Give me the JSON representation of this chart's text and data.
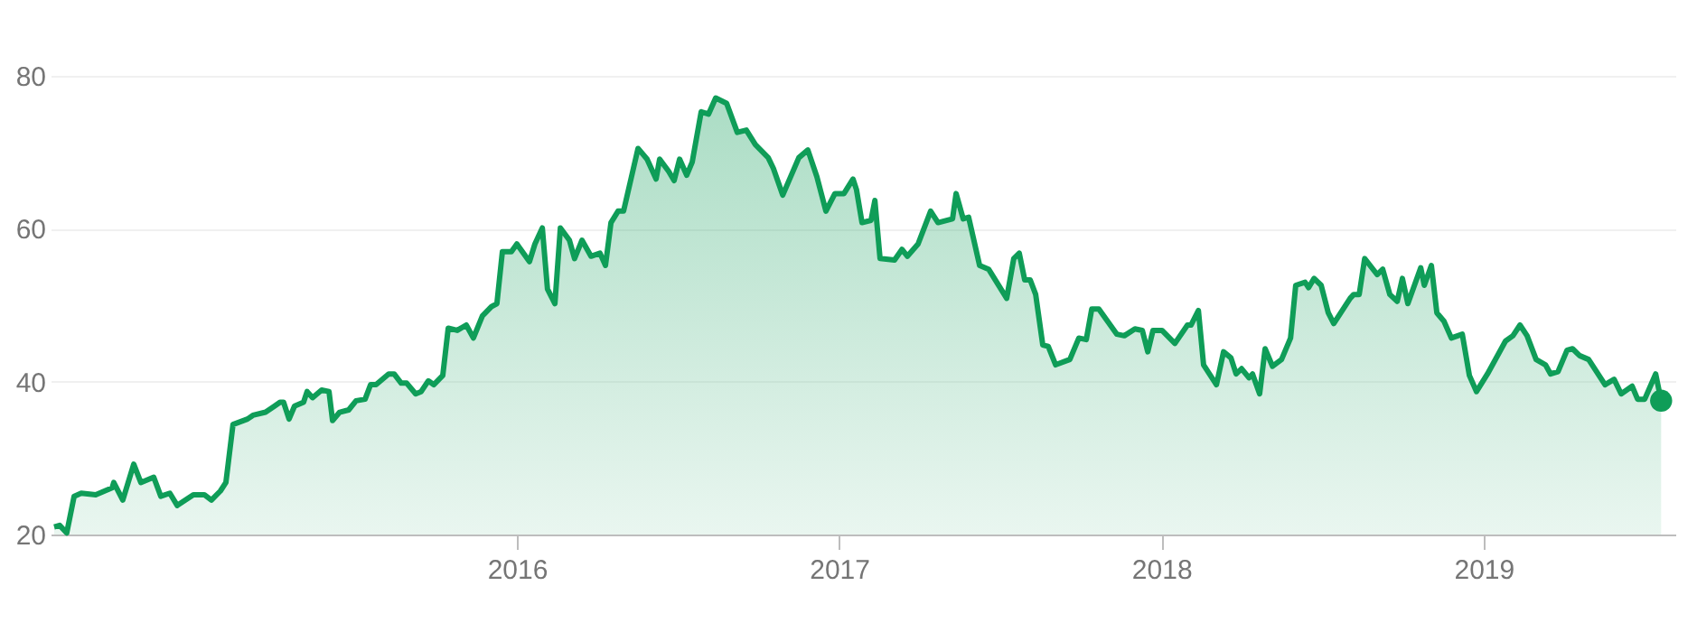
{
  "chart_data": {
    "type": "area",
    "xlim": [
      2014.553,
      2019.595
    ],
    "xticks": [
      2016,
      2017,
      2018,
      2019
    ],
    "ylim": [
      20,
      80
    ],
    "yticks": [
      20,
      40,
      60,
      80
    ],
    "grid": "y",
    "series": [
      {
        "color": "#0f9d58",
        "x": [
          2014.564,
          2014.581,
          2014.603,
          2014.626,
          2014.648,
          2014.693,
          2014.744,
          2014.749,
          2014.777,
          2014.811,
          2014.833,
          2014.873,
          2014.895,
          2014.923,
          2014.946,
          2014.996,
          2015.03,
          2015.052,
          2015.08,
          2015.097,
          2015.119,
          2015.164,
          2015.181,
          2015.22,
          2015.248,
          2015.265,
          2015.276,
          2015.293,
          2015.31,
          2015.338,
          2015.349,
          2015.366,
          2015.394,
          2015.417,
          2015.428,
          2015.45,
          2015.478,
          2015.501,
          2015.529,
          2015.546,
          2015.563,
          2015.602,
          2015.619,
          2015.641,
          2015.658,
          2015.686,
          2015.703,
          2015.725,
          2015.742,
          2015.77,
          2015.787,
          2015.815,
          2015.843,
          2015.865,
          2015.893,
          2015.921,
          2015.938,
          2015.955,
          2015.983,
          2016.0,
          2016.039,
          2016.056,
          2016.079,
          2016.095,
          2016.118,
          2016.135,
          2016.163,
          2016.179,
          2016.202,
          2016.23,
          2016.258,
          2016.275,
          2016.292,
          2016.314,
          2016.331,
          2016.376,
          2016.404,
          2016.432,
          2016.443,
          2016.471,
          2016.488,
          2016.505,
          2016.527,
          2016.544,
          2016.572,
          2016.595,
          2016.617,
          2016.651,
          2016.684,
          2016.712,
          2016.74,
          2016.78,
          2016.796,
          2016.825,
          2016.875,
          2016.903,
          2016.931,
          2016.959,
          2016.987,
          2017.015,
          2017.043,
          2017.054,
          2017.071,
          2017.099,
          2017.111,
          2017.127,
          2017.172,
          2017.195,
          2017.212,
          2017.245,
          2017.284,
          2017.307,
          2017.352,
          2017.363,
          2017.385,
          2017.402,
          2017.436,
          2017.464,
          2017.52,
          2017.542,
          2017.559,
          2017.576,
          2017.593,
          2017.61,
          2017.632,
          2017.649,
          2017.672,
          2017.716,
          2017.744,
          2017.767,
          2017.784,
          2017.806,
          2017.862,
          2017.885,
          2017.918,
          2017.941,
          2017.958,
          2017.974,
          2018.002,
          2018.042,
          2018.081,
          2018.092,
          2018.115,
          2018.131,
          2018.171,
          2018.193,
          2018.216,
          2018.232,
          2018.249,
          2018.272,
          2018.283,
          2018.305,
          2018.322,
          2018.345,
          2018.373,
          2018.401,
          2018.417,
          2018.446,
          2018.457,
          2018.474,
          2018.496,
          2018.518,
          2018.535,
          2018.586,
          2018.597,
          2018.614,
          2018.631,
          2018.67,
          2018.687,
          2018.709,
          2018.732,
          2018.748,
          2018.765,
          2018.805,
          2018.816,
          2018.838,
          2018.855,
          2018.877,
          2018.9,
          2018.934,
          2018.956,
          2018.978,
          2019.012,
          2019.068,
          2019.091,
          2019.113,
          2019.135,
          2019.163,
          2019.192,
          2019.208,
          2019.231,
          2019.259,
          2019.276,
          2019.298,
          2019.326,
          2019.377,
          2019.405,
          2019.427,
          2019.461,
          2019.478,
          2019.5,
          2019.534,
          2019.551
        ],
        "values": [
          21,
          21.2,
          20.2,
          25,
          25.4,
          25.2,
          26.1,
          26.8,
          24.5,
          29.2,
          26.8,
          27.5,
          25,
          25.4,
          23.8,
          25.2,
          25.2,
          24.5,
          25.7,
          26.8,
          34.4,
          35.1,
          35.6,
          36,
          36.8,
          37.3,
          37.3,
          35.1,
          36.8,
          37.3,
          38.7,
          37.9,
          38.9,
          38.7,
          34.9,
          36,
          36.3,
          37.5,
          37.7,
          39.6,
          39.6,
          41,
          41,
          39.8,
          39.8,
          38.4,
          38.7,
          40.1,
          39.6,
          40.8,
          47,
          46.7,
          47.4,
          45.7,
          48.6,
          49.8,
          50.2,
          57,
          57,
          58,
          55.7,
          58,
          60.1,
          52.1,
          50.2,
          60.1,
          58.5,
          56.1,
          58.5,
          56.4,
          56.8,
          55.2,
          60.8,
          62.3,
          62.3,
          70.5,
          69.1,
          66.5,
          69.1,
          67.5,
          66.3,
          69.1,
          67,
          68.7,
          75.3,
          75,
          77.1,
          76.4,
          72.6,
          72.9,
          71,
          69.3,
          67.9,
          64.4,
          69.3,
          70.3,
          66.8,
          62.3,
          64.6,
          64.6,
          66.5,
          65.1,
          60.8,
          61.1,
          63.7,
          56.1,
          55.9,
          57.3,
          56.4,
          58,
          62.3,
          60.8,
          61.3,
          64.6,
          61.3,
          61.5,
          55.2,
          54.7,
          50.9,
          56.1,
          56.8,
          53.3,
          53.3,
          51.4,
          44.8,
          44.6,
          42.2,
          42.9,
          45.7,
          45.5,
          49.5,
          49.5,
          46.2,
          46,
          46.9,
          46.7,
          43.9,
          46.7,
          46.7,
          45,
          47.4,
          47.4,
          49.3,
          42.2,
          39.6,
          43.9,
          43.1,
          41,
          41.7,
          40.5,
          41,
          38.4,
          44.3,
          42,
          42.9,
          45.7,
          52.6,
          53,
          52.3,
          53.5,
          52.6,
          49,
          47.6,
          50.9,
          51.4,
          51.4,
          56.1,
          54,
          54.7,
          51.4,
          50.5,
          53.5,
          50.2,
          54.9,
          52.6,
          55.2,
          49,
          47.9,
          45.7,
          46.2,
          40.8,
          38.7,
          41,
          45.3,
          46,
          47.4,
          46,
          42.9,
          42.2,
          41,
          41.3,
          44.1,
          44.3,
          43.4,
          42.9,
          39.6,
          40.3,
          38.4,
          39.4,
          37.7,
          37.7,
          41,
          37.5
        ]
      },
      {
        "type": "scatter",
        "color": "#0f9d58",
        "marker": "circle",
        "x": [
          2019.551
        ],
        "values": [
          37.5
        ]
      }
    ]
  }
}
